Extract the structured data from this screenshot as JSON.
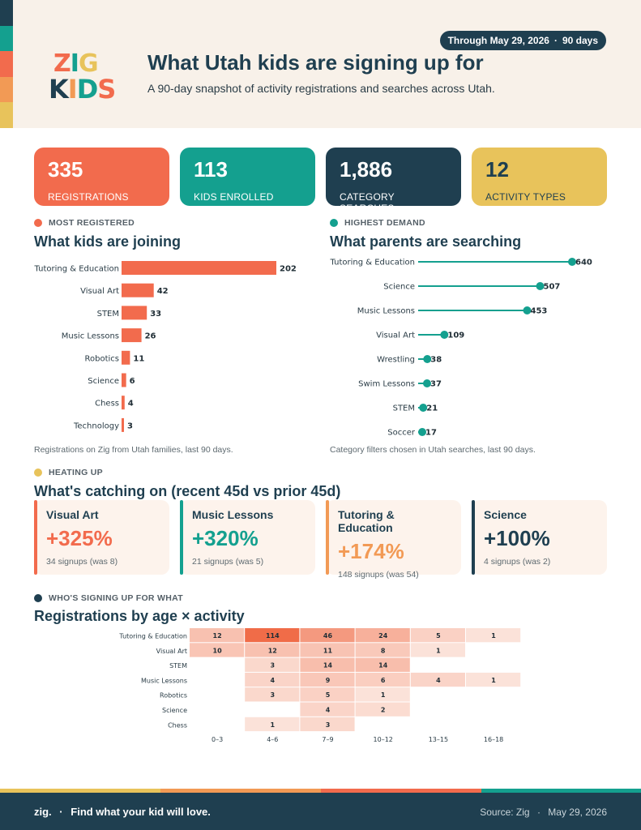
{
  "colors": {
    "navy": "#1f3f50",
    "coral": "#f26b4d",
    "teal": "#14a08f",
    "orange": "#f29a55",
    "yellow": "#e8c35b",
    "cream": "#f8f1e9"
  },
  "header": {
    "logo_line1": [
      "Z",
      "I",
      "G"
    ],
    "logo_line2": [
      "K",
      "I",
      "D",
      "S"
    ],
    "pill_date": "Through May 29, 2026",
    "pill_sep": "·",
    "pill_days": "90 days",
    "title": "What Utah kids are signing up for",
    "subtitle": "A 90-day snapshot of activity registrations and searches across Utah."
  },
  "kpis": [
    {
      "value": "335",
      "label": "REGISTRATIONS"
    },
    {
      "value": "113",
      "label": "KIDS ENROLLED"
    },
    {
      "value": "1,886",
      "label": "CATEGORY SEARCHES"
    },
    {
      "value": "12",
      "label": "ACTIVITY TYPES"
    }
  ],
  "sections": {
    "registered": {
      "tag": "MOST REGISTERED",
      "title": "What kids are joining",
      "note": "Registrations on Zig from Utah families, last 90 days."
    },
    "demand": {
      "tag": "HIGHEST DEMAND",
      "title": "What parents are searching",
      "note": "Category filters chosen in Utah searches, last 90 days."
    },
    "heating": {
      "tag": "HEATING UP",
      "title": "What's catching on (recent 45d vs prior 45d)"
    },
    "age": {
      "tag": "WHO'S SIGNING UP FOR WHAT",
      "title": "Registrations by age × activity"
    }
  },
  "trends": [
    {
      "name": "Visual Art",
      "pct": "+325%",
      "sub": "34 signups (was 8)"
    },
    {
      "name": "Music Lessons",
      "pct": "+320%",
      "sub": "21 signups (was 5)"
    },
    {
      "name": "Tutoring & Education",
      "pct": "+174%",
      "sub": "148 signups (was 54)"
    },
    {
      "name": "Science",
      "pct": "+100%",
      "sub": "4 signups (was 2)"
    }
  ],
  "chart_data": [
    {
      "type": "bar",
      "orientation": "horizontal",
      "categories": [
        "Tutoring & Education",
        "Visual Art",
        "STEM",
        "Music Lessons",
        "Robotics",
        "Science",
        "Chess",
        "Technology"
      ],
      "values": [
        202,
        42,
        33,
        26,
        11,
        6,
        4,
        3
      ]
    },
    {
      "type": "scatter",
      "style": "lollipop",
      "categories": [
        "Tutoring & Education",
        "Science",
        "Music Lessons",
        "Visual Art",
        "Wrestling",
        "Swim Lessons",
        "STEM",
        "Soccer"
      ],
      "values": [
        640,
        507,
        453,
        109,
        38,
        37,
        21,
        17
      ]
    },
    {
      "type": "heatmap",
      "rows": [
        "Tutoring & Education",
        "Visual Art",
        "STEM",
        "Music Lessons",
        "Robotics",
        "Science",
        "Chess"
      ],
      "cols": [
        "0–3",
        "4–6",
        "7–9",
        "10–12",
        "13–15",
        "16–18"
      ],
      "values": [
        [
          12,
          114,
          46,
          24,
          5,
          1
        ],
        [
          10,
          12,
          11,
          8,
          1,
          null
        ],
        [
          null,
          3,
          14,
          14,
          null,
          null
        ],
        [
          null,
          4,
          9,
          6,
          4,
          1
        ],
        [
          null,
          3,
          5,
          1,
          null,
          null
        ],
        [
          null,
          null,
          4,
          2,
          null,
          null
        ],
        [
          null,
          1,
          3,
          null,
          null,
          null
        ]
      ]
    }
  ],
  "footer": {
    "brand": "zig.",
    "sep": "·",
    "tagline": "Find what your kid will love.",
    "source": "Source: Zig",
    "date": "May 29, 2026"
  }
}
